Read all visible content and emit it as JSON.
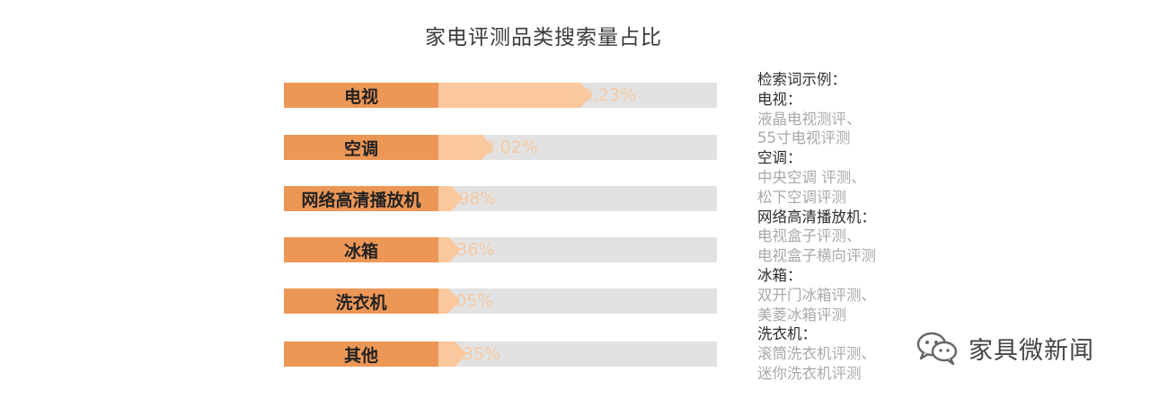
{
  "chart_data": {
    "type": "bar",
    "title": "家电评测品类搜索量占比",
    "categories": [
      "电视",
      "空调",
      "网络高清播放机",
      "冰箱",
      "洗衣机",
      "其他"
    ],
    "values": [
      50.23,
      18.02,
      7.98,
      7.36,
      7.05,
      9.35
    ],
    "value_labels": [
      "50.23%",
      "18.02%",
      "7.98%",
      "7.36%",
      "7.05%",
      "9.35%"
    ],
    "xlim": [
      0,
      100
    ],
    "grid": false,
    "legend": "none"
  },
  "sidebar": {
    "heading": "检索词示例：",
    "groups": [
      {
        "name": "电视：",
        "examples": [
          "液晶电视测评、",
          "55寸电视评测"
        ]
      },
      {
        "name": "空调：",
        "examples": [
          "中央空调 评测、",
          "松下空调评测"
        ]
      },
      {
        "name": "网络高清播放机：",
        "examples": [
          "电视盒子评测、",
          "电视盒子横向评测"
        ]
      },
      {
        "name": "冰箱：",
        "examples": [
          "双开门冰箱评测、",
          "美菱冰箱评测"
        ]
      },
      {
        "name": "洗衣机：",
        "examples": [
          "滚筒洗衣机评测、",
          "迷你洗衣机评测"
        ]
      }
    ]
  },
  "watermark": {
    "text": "家具微新闻",
    "icon": "wechat-icon"
  },
  "colors": {
    "label_box": "#ed9757",
    "fill": "#fbc79d",
    "track": "#e2e2e2",
    "value_text": "#f5c9a3"
  }
}
